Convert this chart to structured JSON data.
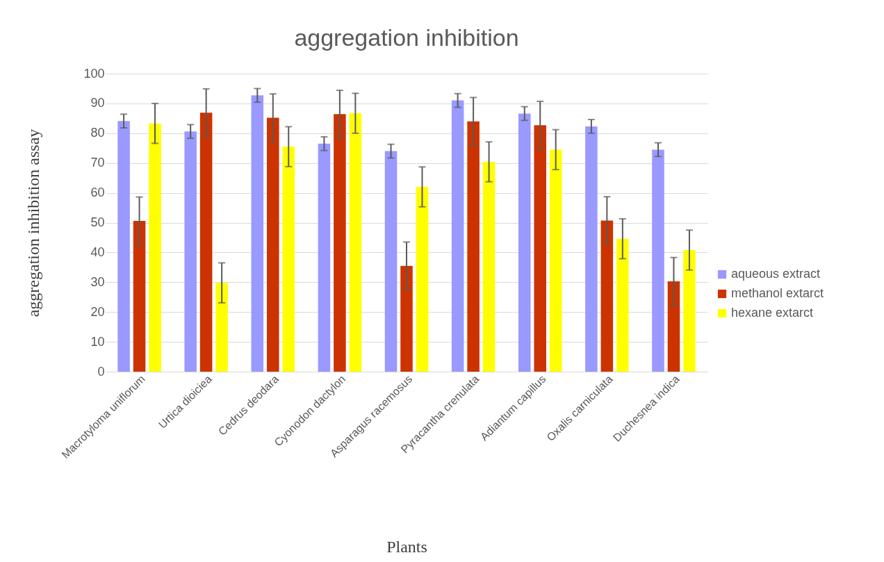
{
  "chart_data": {
    "type": "bar",
    "title": "aggregation inhibition",
    "xlabel": "Plants",
    "ylabel": "aggregation inhibition assay",
    "categories": [
      "Macrotyloma uniflorum",
      "Urtica dioiciea",
      "Cedrus deodara",
      "Cyonodon dactylon",
      "Asparagus racemosus",
      "Pyracantha crenulata",
      "Adiantum capillus",
      "Oxalis carniculata",
      "Duchesnea indica"
    ],
    "series": [
      {
        "name": "aqueous extract",
        "color": "#9999ff",
        "values": [
          84.1,
          80.6,
          92.7,
          76.5,
          74,
          91,
          86.6,
          82.3,
          74.5
        ],
        "errors": [
          2.3,
          2.3,
          2.3,
          2.3,
          2.3,
          2.3,
          2.3,
          2.3,
          2.3
        ]
      },
      {
        "name": "methanol extarct",
        "color": "#cc3300",
        "values": [
          50.6,
          86.9,
          85.2,
          86.4,
          35.5,
          84,
          82.7,
          50.7,
          30.3
        ],
        "errors": [
          8,
          8,
          8,
          8,
          8,
          8,
          8,
          8,
          8
        ]
      },
      {
        "name": "hexane extarct",
        "color": "#ffff00",
        "values": [
          83.3,
          29.8,
          75.5,
          86.7,
          62,
          70.4,
          74.5,
          44.6,
          40.8
        ],
        "errors": [
          6.7,
          6.7,
          6.7,
          6.7,
          6.7,
          6.7,
          6.7,
          6.7,
          6.7
        ]
      }
    ],
    "ylim": [
      0,
      100
    ],
    "yticks": [
      0,
      10,
      20,
      30,
      40,
      50,
      60,
      70,
      80,
      90,
      100
    ],
    "grid": "y",
    "legend": "right"
  }
}
